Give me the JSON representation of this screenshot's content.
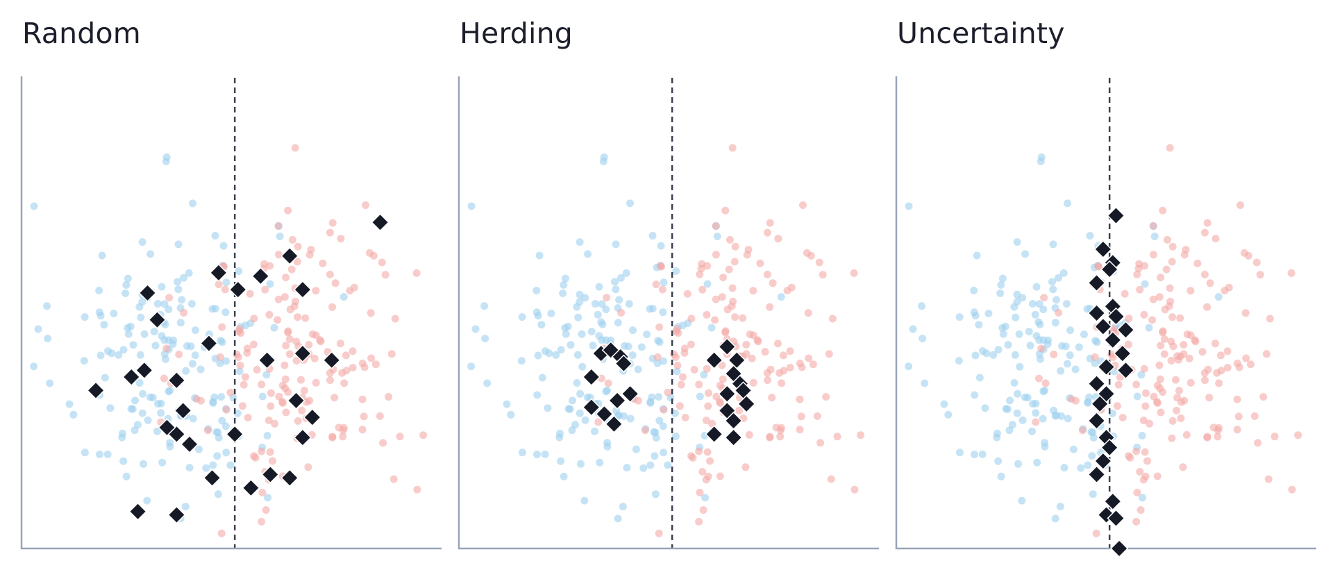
{
  "colors": {
    "blue_point": "#9fd0ef",
    "red_point": "#f4aaa7",
    "selected": "#161a26",
    "selected_stroke": "#ffffff",
    "axis": "#97a4b8",
    "boundary": "#3a3f4d",
    "title": "#1c1f2b"
  },
  "chart_data": [
    {
      "type": "scatter",
      "title": "Random",
      "xlabel": "",
      "ylabel": "",
      "xlim": [
        -3.3,
        3.2
      ],
      "ylim": [
        -3.4,
        3.6
      ],
      "decision_boundary_x": 0,
      "grid": false,
      "marker": "diamond",
      "selected": [
        [
          2.25,
          1.45
        ],
        [
          -1.35,
          0.4
        ],
        [
          -1.2,
          0.0
        ],
        [
          -0.25,
          0.7
        ],
        [
          0.05,
          0.45
        ],
        [
          0.4,
          0.65
        ],
        [
          0.85,
          0.95
        ],
        [
          1.05,
          0.45
        ],
        [
          -1.4,
          -0.75
        ],
        [
          -0.9,
          -0.9
        ],
        [
          -0.9,
          -1.7
        ],
        [
          -0.4,
          -0.35
        ],
        [
          0.5,
          -0.6
        ],
        [
          1.05,
          -0.5
        ],
        [
          1.5,
          -0.6
        ],
        [
          -2.15,
          -1.05
        ],
        [
          -1.6,
          -0.85
        ],
        [
          -0.8,
          -1.35
        ],
        [
          -1.05,
          -1.6
        ],
        [
          -0.7,
          -1.85
        ],
        [
          0.95,
          -1.2
        ],
        [
          1.2,
          -1.45
        ],
        [
          1.05,
          -1.75
        ],
        [
          0.0,
          -1.7
        ],
        [
          0.55,
          -2.3
        ],
        [
          0.25,
          -2.5
        ],
        [
          -0.35,
          -2.35
        ],
        [
          0.85,
          -2.35
        ],
        [
          -1.5,
          -2.85
        ],
        [
          -0.9,
          -2.9
        ]
      ]
    },
    {
      "type": "scatter",
      "title": "Herding",
      "xlabel": "",
      "ylabel": "",
      "xlim": [
        -3.3,
        3.2
      ],
      "ylim": [
        -3.4,
        3.6
      ],
      "decision_boundary_x": 0,
      "grid": false,
      "marker": "diamond",
      "selected": [
        [
          -1.1,
          -0.5
        ],
        [
          -0.95,
          -0.45
        ],
        [
          -0.8,
          -0.55
        ],
        [
          -0.75,
          -0.65
        ],
        [
          -1.25,
          -0.85
        ],
        [
          -0.65,
          -1.1
        ],
        [
          -0.85,
          -1.2
        ],
        [
          -1.25,
          -1.3
        ],
        [
          -1.05,
          -1.4
        ],
        [
          -0.9,
          -1.55
        ],
        [
          0.85,
          -0.4
        ],
        [
          0.65,
          -0.6
        ],
        [
          1.0,
          -0.6
        ],
        [
          0.95,
          -0.8
        ],
        [
          1.05,
          -0.95
        ],
        [
          1.1,
          -1.05
        ],
        [
          0.85,
          -1.1
        ],
        [
          1.15,
          -1.25
        ],
        [
          0.85,
          -1.35
        ],
        [
          0.95,
          -1.5
        ],
        [
          0.65,
          -1.7
        ],
        [
          0.95,
          -1.75
        ]
      ]
    },
    {
      "type": "scatter",
      "title": "Uncertainty",
      "xlabel": "",
      "ylabel": "",
      "xlim": [
        -3.3,
        3.2
      ],
      "ylim": [
        -3.4,
        3.6
      ],
      "decision_boundary_x": 0,
      "grid": false,
      "marker": "diamond",
      "selected": [
        [
          0.1,
          1.55
        ],
        [
          -0.1,
          1.05
        ],
        [
          0.05,
          0.85
        ],
        [
          0.0,
          0.75
        ],
        [
          -0.2,
          0.55
        ],
        [
          0.05,
          0.2
        ],
        [
          -0.2,
          0.1
        ],
        [
          0.1,
          0.05
        ],
        [
          -0.1,
          -0.1
        ],
        [
          0.25,
          -0.15
        ],
        [
          0.05,
          -0.3
        ],
        [
          0.2,
          -0.5
        ],
        [
          -0.05,
          -0.7
        ],
        [
          0.25,
          -0.75
        ],
        [
          -0.2,
          -0.95
        ],
        [
          -0.05,
          -1.1
        ],
        [
          -0.15,
          -1.25
        ],
        [
          -0.2,
          -1.5
        ],
        [
          -0.05,
          -1.75
        ],
        [
          0.0,
          -1.9
        ],
        [
          -0.1,
          -2.1
        ],
        [
          -0.2,
          -2.3
        ],
        [
          0.05,
          -2.7
        ],
        [
          -0.05,
          -2.9
        ],
        [
          0.1,
          -2.95
        ],
        [
          0.15,
          -3.4
        ]
      ]
    }
  ]
}
